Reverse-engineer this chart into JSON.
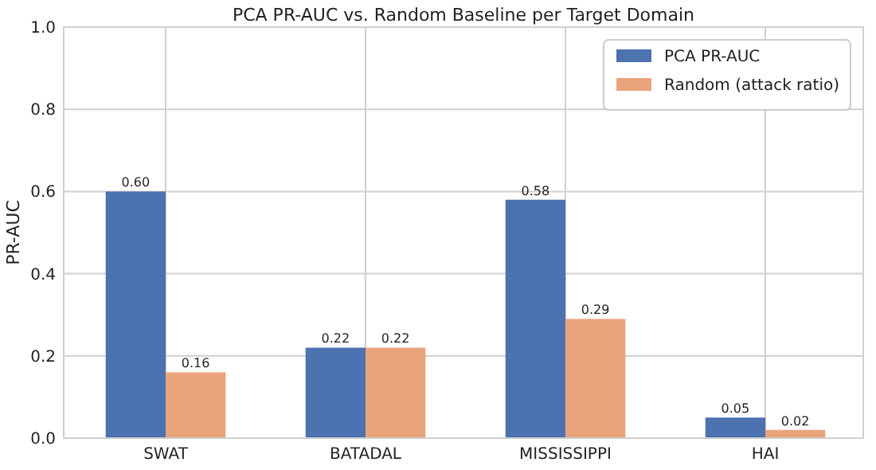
{
  "chart_data": {
    "type": "bar",
    "title": "PCA PR-AUC vs. Random Baseline per Target Domain",
    "ylabel": "PR-AUC",
    "categories": [
      "SWAT",
      "BATADAL",
      "MISSISSIPPI",
      "HAI"
    ],
    "series": [
      {
        "name": "PCA PR-AUC",
        "color": "#4c72b0",
        "values": [
          0.6,
          0.22,
          0.58,
          0.05
        ],
        "value_labels": [
          "0.60",
          "0.22",
          "0.58",
          "0.05"
        ]
      },
      {
        "name": "Random (attack ratio)",
        "color": "#e9a47c",
        "values": [
          0.16,
          0.22,
          0.29,
          0.02
        ],
        "value_labels": [
          "0.16",
          "0.22",
          "0.29",
          "0.02"
        ]
      }
    ],
    "ylim": [
      0,
      1
    ],
    "yticks": [
      {
        "value": 0,
        "label": "0.0"
      },
      {
        "value": 0.2,
        "label": "0.2"
      },
      {
        "value": 0.4,
        "label": "0.4"
      },
      {
        "value": 0.6,
        "label": "0.6"
      },
      {
        "value": 0.8,
        "label": "0.8"
      },
      {
        "value": 1,
        "label": "1.0"
      }
    ],
    "grid": true,
    "legend": "top right"
  }
}
